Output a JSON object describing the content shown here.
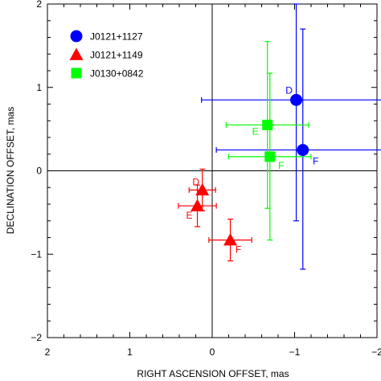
{
  "chart_data": {
    "type": "scatter",
    "title": "",
    "xlabel": "RIGHT ASCENSION OFFSET, mas",
    "ylabel": "DECLINATION OFFSET, mas",
    "xlim": [
      2,
      -2
    ],
    "ylim": [
      -2,
      2
    ],
    "x_reversed": true,
    "x_ticks": [
      2,
      1,
      0,
      -1,
      -2
    ],
    "x_tick_labels": [
      "2",
      "1",
      "0",
      "−1",
      "−2"
    ],
    "y_ticks": [
      -2,
      -1,
      0,
      1,
      2
    ],
    "y_tick_labels": [
      "−2",
      "−1",
      "0",
      "1",
      "2"
    ],
    "grid": false,
    "zero_lines": true,
    "legend_position": "top-left",
    "series": [
      {
        "name": "J0121+1127",
        "marker": "circle",
        "color": "#0000ff",
        "points": [
          {
            "label": "D",
            "x": -1.02,
            "y": 0.85,
            "xerr": 1.15,
            "yerr_low": 1.45,
            "yerr_high": 1.15
          },
          {
            "label": "F",
            "x": -1.1,
            "y": 0.25,
            "xerr": 1.05,
            "yerr_low": 1.43,
            "yerr_high": 1.45
          }
        ]
      },
      {
        "name": "J0121+1149",
        "marker": "triangle",
        "color": "#ff0000",
        "points": [
          {
            "label": "D",
            "x": 0.12,
            "y": -0.23,
            "xerr": 0.16,
            "yerr": 0.25
          },
          {
            "label": "E",
            "x": 0.18,
            "y": -0.42,
            "xerr": 0.23,
            "yerr": 0.25
          },
          {
            "label": "F",
            "x": -0.22,
            "y": -0.83,
            "xerr": 0.26,
            "yerr": 0.25
          }
        ]
      },
      {
        "name": "J0130+0842",
        "marker": "square",
        "color": "#00ff00",
        "points": [
          {
            "label": "E",
            "x": -0.67,
            "y": 0.55,
            "xerr": 0.5,
            "yerr": 1.0
          },
          {
            "label": "F",
            "x": -0.7,
            "y": 0.17,
            "xerr": 0.5,
            "yerr": 1.0
          }
        ]
      }
    ]
  },
  "colors": {
    "J0121+1127": "#0000ff",
    "J0121+1149": "#ff0000",
    "J0130+0842": "#00ff00"
  }
}
